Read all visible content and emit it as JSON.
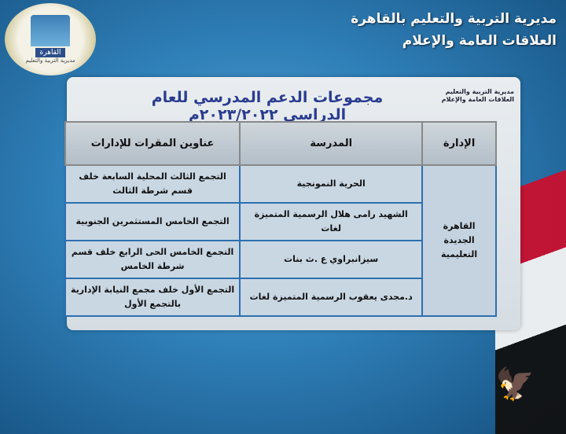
{
  "header": {
    "line1": "مديرية التربية والتعليم بالقاهرة",
    "line2": "العلاقات العامة والإعلام"
  },
  "logo": {
    "text": "القاهرة",
    "sub": "مديرية التربية والتعليم"
  },
  "panel": {
    "mini_line1": "مديرية التربية والتعليم",
    "mini_line2": "العلاقات العامة والإعلام",
    "title": "مجموعات الدعم المدرسي للعام الدراسي ٢٠٢٣/٢٠٢٢م"
  },
  "table": {
    "headers": [
      "الإدارة",
      "المدرسة",
      "عناوين المقرات للإدارات"
    ],
    "administration": "القاهرة الجديدة التعليمية",
    "rows": [
      {
        "school": "الحرية النمونجية",
        "address": "التجمع الثالث المحلية السابعة خلف قسم شرطة الثالث"
      },
      {
        "school": "الشهيد رامى هلال الرسمية المتميزة لغات",
        "address": "التجمع الخامس المستثمرين الجنوبية"
      },
      {
        "school": "سيزانبراوي ع .ث بنات",
        "address": "التجمع الخامس الحى الرابع خلف قسم شرطة الخامس"
      },
      {
        "school": "د.مجدى يعقوب الرسمية المتميزة لغات",
        "address": "التجمع الأول خلف مجمع النيابة الإدارية بالتجمع الأول"
      }
    ]
  }
}
